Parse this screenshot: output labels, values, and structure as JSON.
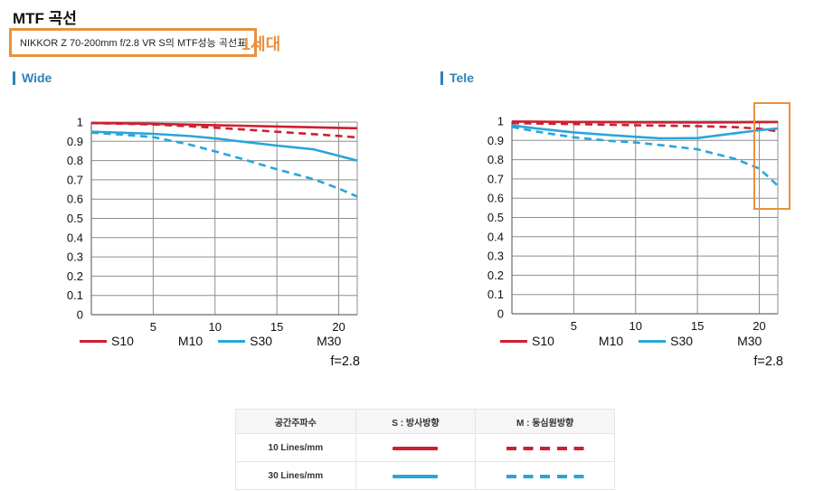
{
  "page": {
    "title": "MTF 곡선",
    "subtitle_box": "NIKKOR Z 70-200mm f/2.8 VR S의 MTF성능 곡선표",
    "generation_label": "1세대"
  },
  "colors": {
    "red": "#cf1f30",
    "blue": "#29a5da",
    "orange": "#e8913d",
    "heading_blue": "#2d82b5",
    "grid": "#8e8e8e"
  },
  "chart_data": [
    {
      "type": "line",
      "title": "Wide",
      "aperture_label": "f=2.8",
      "xlabel": "",
      "ylabel": "",
      "xlim": [
        0,
        21.5
      ],
      "ylim": [
        0,
        1
      ],
      "xticks": [
        5,
        10,
        15,
        20
      ],
      "yticks": [
        0,
        0.1,
        0.2,
        0.3,
        0.4,
        0.5,
        0.6,
        0.7,
        0.8,
        0.9,
        1
      ],
      "grid": true,
      "legend_position": "bottom",
      "x": [
        0,
        2,
        5,
        8,
        10,
        12,
        15,
        18,
        20,
        21.5
      ],
      "series": [
        {
          "name": "S10",
          "color": "#cf1f30",
          "style": "solid",
          "values": [
            0.995,
            0.994,
            0.991,
            0.987,
            0.984,
            0.981,
            0.977,
            0.973,
            0.97,
            0.968
          ]
        },
        {
          "name": "M10",
          "color": "#cf1f30",
          "style": "dashed",
          "values": [
            0.995,
            0.992,
            0.988,
            0.978,
            0.971,
            0.963,
            0.95,
            0.937,
            0.928,
            0.92
          ]
        },
        {
          "name": "S30",
          "color": "#29a5da",
          "style": "solid",
          "values": [
            0.95,
            0.946,
            0.939,
            0.927,
            0.915,
            0.9,
            0.878,
            0.858,
            0.825,
            0.8
          ]
        },
        {
          "name": "M30",
          "color": "#29a5da",
          "style": "dashed",
          "values": [
            0.945,
            0.937,
            0.922,
            0.882,
            0.848,
            0.812,
            0.755,
            0.703,
            0.655,
            0.613
          ]
        }
      ]
    },
    {
      "type": "line",
      "title": "Tele",
      "aperture_label": "f=2.8",
      "xlabel": "",
      "ylabel": "",
      "xlim": [
        0,
        21.5
      ],
      "ylim": [
        0,
        1
      ],
      "xticks": [
        5,
        10,
        15,
        20
      ],
      "yticks": [
        0,
        0.1,
        0.2,
        0.3,
        0.4,
        0.5,
        0.6,
        0.7,
        0.8,
        0.9,
        1
      ],
      "grid": true,
      "legend_position": "bottom",
      "x": [
        0,
        2,
        5,
        8,
        10,
        12,
        15,
        18,
        20,
        21.5
      ],
      "series": [
        {
          "name": "S10",
          "color": "#cf1f30",
          "style": "solid",
          "values": [
            0.998,
            0.997,
            0.996,
            0.995,
            0.994,
            0.994,
            0.993,
            0.994,
            0.995,
            0.996
          ]
        },
        {
          "name": "M10",
          "color": "#cf1f30",
          "style": "dashed",
          "values": [
            0.99,
            0.988,
            0.985,
            0.981,
            0.979,
            0.977,
            0.974,
            0.969,
            0.961,
            0.947
          ]
        },
        {
          "name": "S30",
          "color": "#29a5da",
          "style": "solid",
          "values": [
            0.978,
            0.962,
            0.942,
            0.927,
            0.919,
            0.911,
            0.912,
            0.937,
            0.953,
            0.962
          ]
        },
        {
          "name": "M30",
          "color": "#29a5da",
          "style": "dashed",
          "values": [
            0.97,
            0.946,
            0.916,
            0.897,
            0.889,
            0.876,
            0.854,
            0.805,
            0.754,
            0.665
          ]
        }
      ]
    }
  ],
  "table": {
    "headers": [
      "공간주파수",
      "S : 방사방향",
      "M : 동심원방향"
    ],
    "rows": [
      {
        "label": "10 Lines/mm",
        "s": {
          "style": "solid",
          "color": "#cf1f30"
        },
        "m": {
          "style": "dashed",
          "color": "#cf1f30"
        }
      },
      {
        "label": "30 Lines/mm",
        "s": {
          "style": "solid",
          "color": "#29a5da"
        },
        "m": {
          "style": "dashed",
          "color": "#29a5da"
        }
      }
    ]
  }
}
